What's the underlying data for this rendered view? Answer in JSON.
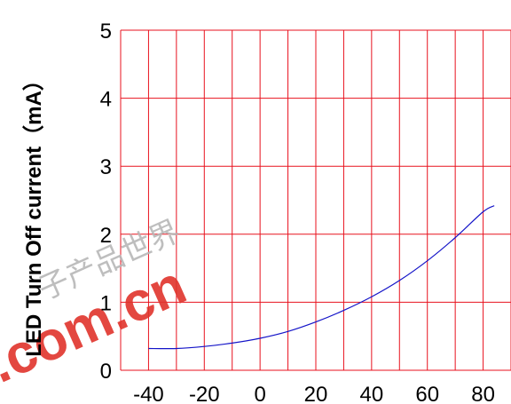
{
  "chart_data": {
    "type": "line",
    "title": "",
    "xlabel": "",
    "ylabel": "LED Turn Off current（mA）",
    "x_ticks": [
      "-40",
      "-20",
      "0",
      "20",
      "40",
      "60",
      "80"
    ],
    "y_ticks": [
      "0",
      "1",
      "2",
      "3",
      "4",
      "5"
    ],
    "xlim": [
      -50,
      90
    ],
    "ylim": [
      0,
      5
    ],
    "grid": true,
    "legend": "none",
    "series": [
      {
        "x": [
          -40,
          -30,
          -20,
          -10,
          0,
          10,
          20,
          30,
          40,
          50,
          60,
          70,
          80,
          84
        ],
        "y": [
          0.32,
          0.32,
          0.35,
          0.4,
          0.47,
          0.57,
          0.71,
          0.88,
          1.08,
          1.32,
          1.61,
          1.95,
          2.33,
          2.42
        ]
      }
    ]
  },
  "watermark": {
    "text": ".com.cn",
    "cjk": "子产品世界"
  },
  "colors": {
    "grid": "#e8121e",
    "line": "#1414c8",
    "watermark": "#e0342c"
  }
}
